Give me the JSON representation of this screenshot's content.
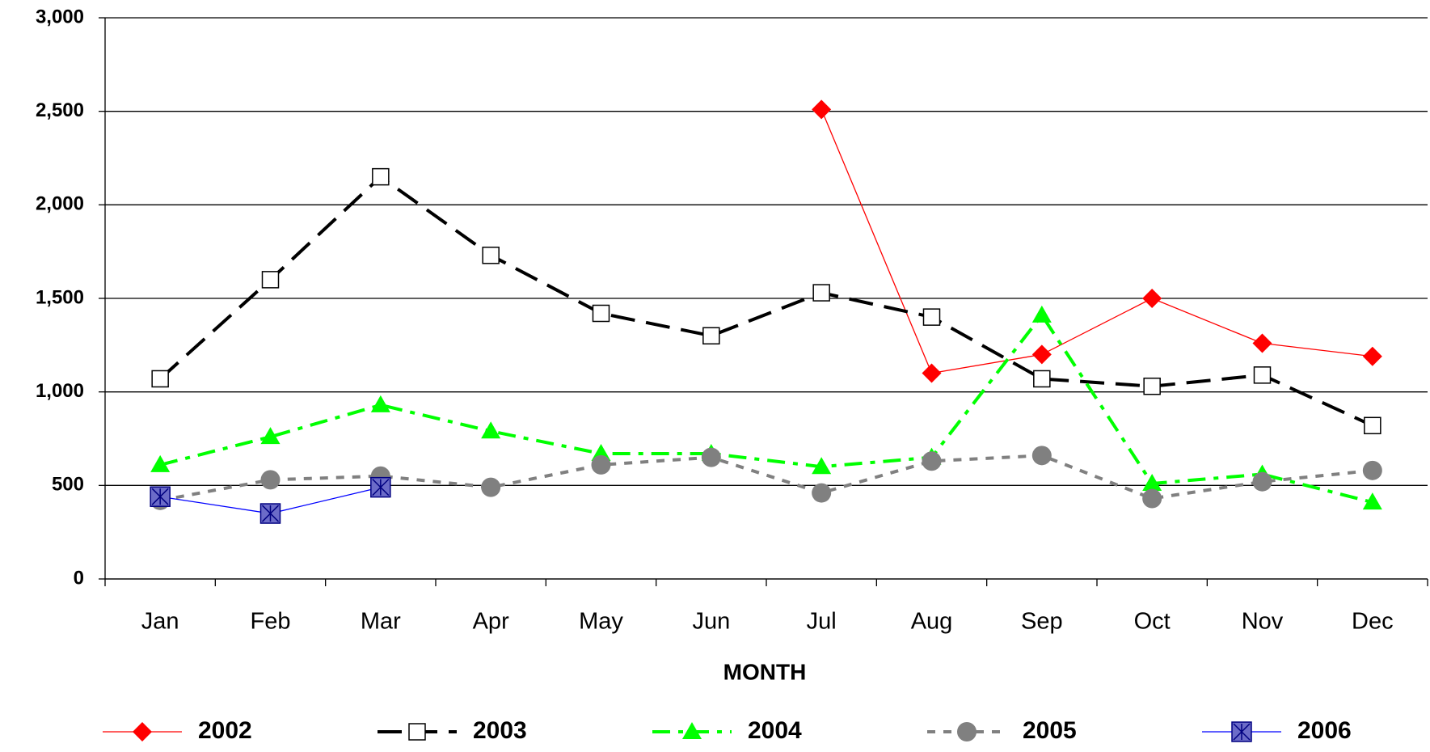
{
  "chart_data": {
    "type": "line",
    "x_label": "MONTH",
    "categories": [
      "Jan",
      "Feb",
      "Mar",
      "Apr",
      "May",
      "Jun",
      "Jul",
      "Aug",
      "Sep",
      "Oct",
      "Nov",
      "Dec"
    ],
    "ylim": [
      0,
      3000
    ],
    "yticks": [
      0,
      500,
      {
        "value": 1000,
        "label": "1,000"
      },
      {
        "value": 1500,
        "label": "1,500"
      },
      {
        "value": 2000,
        "label": "2,000"
      },
      {
        "value": 2500,
        "label": "2,500"
      },
      {
        "value": 3000,
        "label": "3,000"
      }
    ],
    "grid": true,
    "legend": "bottom",
    "series": [
      {
        "name": "2002",
        "color": "#ff0000",
        "marker": "diamond",
        "dash": "solid",
        "values": [
          null,
          null,
          null,
          null,
          null,
          null,
          2510,
          1100,
          1200,
          1500,
          1260,
          1190
        ]
      },
      {
        "name": "2003",
        "color": "#000000",
        "marker": "square",
        "dash": "long-dash",
        "values": [
          1070,
          1600,
          2150,
          1730,
          1420,
          1300,
          1530,
          1400,
          1070,
          1030,
          1090,
          820
        ]
      },
      {
        "name": "2004",
        "color": "#00ff00",
        "marker": "triangle",
        "dash": "dash-dot",
        "values": [
          610,
          760,
          930,
          790,
          670,
          670,
          600,
          650,
          1410,
          510,
          560,
          410
        ]
      },
      {
        "name": "2005",
        "color": "#808080",
        "marker": "circle",
        "dash": "short-dash",
        "values": [
          420,
          530,
          550,
          490,
          610,
          650,
          460,
          630,
          660,
          430,
          520,
          580
        ]
      },
      {
        "name": "2006",
        "color": "#0000ff",
        "marker": "x-square",
        "dash": "solid",
        "values": [
          440,
          350,
          490,
          null,
          null,
          null,
          null,
          null,
          null,
          null,
          null,
          null
        ]
      }
    ]
  }
}
